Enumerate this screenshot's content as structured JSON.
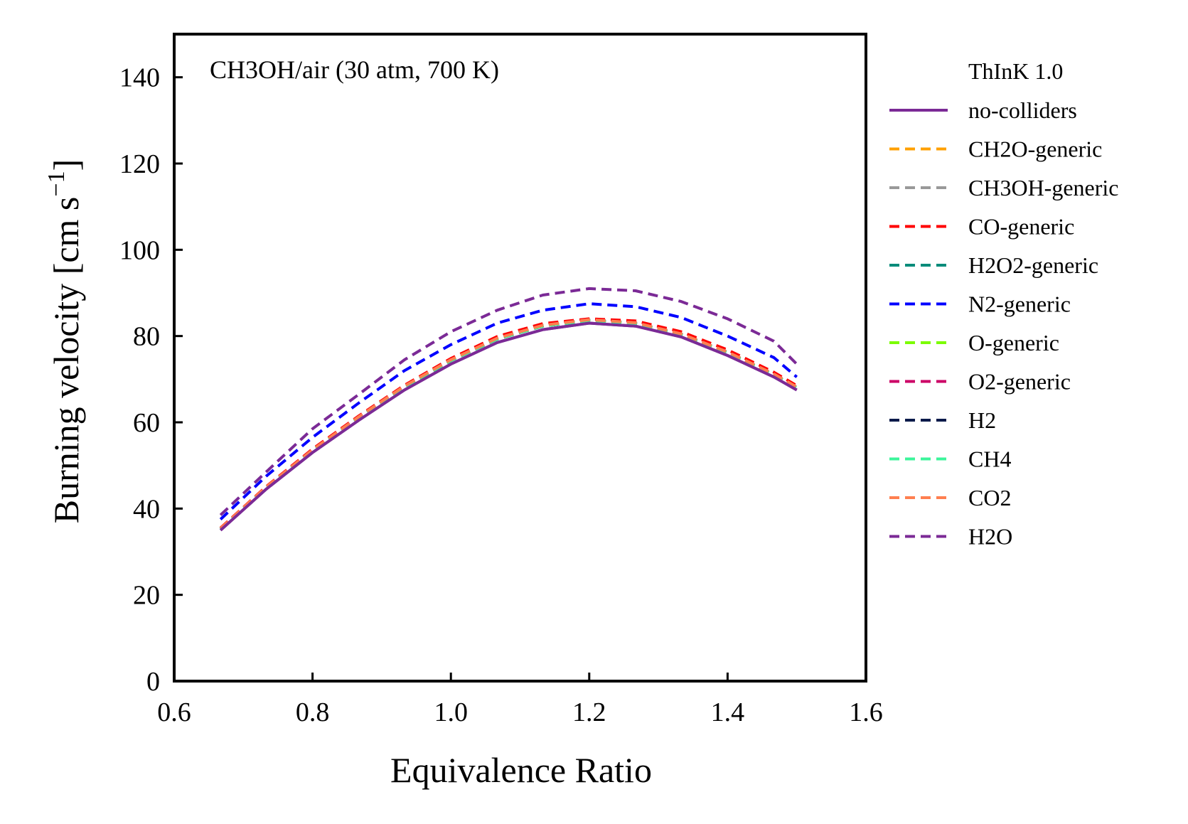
{
  "chart_data": {
    "type": "line",
    "annotation": "CH3OH/air (30 atm, 700 K)",
    "xlabel": "Equivalence Ratio",
    "ylabel_main": "Burning velocity [cm s",
    "ylabel_sup": "−1",
    "ylabel_close": "]",
    "xlim": [
      0.6,
      1.6
    ],
    "ylim": [
      0,
      150
    ],
    "xticks": [
      "0.6",
      "0.8",
      "1.0",
      "1.2",
      "1.4",
      "1.6"
    ],
    "yticks": [
      "0",
      "20",
      "40",
      "60",
      "80",
      "100",
      "120",
      "140"
    ],
    "legend_title": "ThInK 1.0",
    "legend_position": "outside-right",
    "x": [
      0.667,
      0.733,
      0.8,
      0.867,
      0.933,
      1.0,
      1.067,
      1.133,
      1.2,
      1.267,
      1.333,
      1.4,
      1.467,
      1.5
    ],
    "series": [
      {
        "name": "no-colliders",
        "color": "#7b2a96",
        "dash": "solid",
        "values": [
          35.0,
          44.5,
          53.0,
          60.5,
          67.5,
          73.5,
          78.5,
          81.5,
          83.0,
          82.3,
          79.8,
          75.5,
          70.5,
          67.5
        ]
      },
      {
        "name": "CH2O-generic",
        "color": "#ffa000",
        "dash": "dashed",
        "values": [
          35.4,
          45.0,
          53.6,
          61.3,
          68.4,
          74.5,
          79.5,
          82.5,
          83.8,
          83.1,
          80.5,
          76.3,
          71.2,
          68.2
        ]
      },
      {
        "name": "CH3OH-generic",
        "color": "#999999",
        "dash": "dashed",
        "values": [
          35.4,
          45.0,
          53.6,
          61.3,
          68.4,
          74.5,
          79.5,
          82.5,
          83.8,
          83.1,
          80.5,
          76.3,
          71.2,
          68.2
        ]
      },
      {
        "name": "CO-generic",
        "color": "#ff0000",
        "dash": "dashed",
        "values": [
          35.5,
          45.1,
          53.8,
          61.5,
          68.6,
          74.8,
          79.9,
          82.9,
          84.0,
          83.5,
          81.0,
          76.8,
          71.6,
          68.5
        ]
      },
      {
        "name": "H2O2-generic",
        "color": "#008b7a",
        "dash": "dashed",
        "values": [
          35.3,
          44.9,
          53.5,
          61.2,
          68.2,
          74.3,
          79.3,
          82.3,
          83.6,
          82.9,
          80.3,
          76.1,
          71.0,
          68.0
        ]
      },
      {
        "name": "N2-generic",
        "color": "#0000ff",
        "dash": "dashed",
        "values": [
          37.5,
          47.5,
          56.5,
          64.5,
          72.0,
          78.0,
          83.0,
          86.0,
          87.5,
          86.8,
          84.3,
          80.0,
          75.0,
          70.5
        ]
      },
      {
        "name": "O-generic",
        "color": "#7cfc00",
        "dash": "dashed",
        "values": [
          35.3,
          44.9,
          53.5,
          61.2,
          68.2,
          74.3,
          79.3,
          82.3,
          83.6,
          82.9,
          80.3,
          76.1,
          71.0,
          68.0
        ]
      },
      {
        "name": "O2-generic",
        "color": "#cc0066",
        "dash": "dashed",
        "values": [
          35.4,
          45.0,
          53.6,
          61.3,
          68.4,
          74.5,
          79.5,
          82.5,
          83.8,
          83.1,
          80.5,
          76.3,
          71.2,
          68.2
        ]
      },
      {
        "name": "H2",
        "color": "#0a1a4a",
        "dash": "dashed",
        "values": [
          35.3,
          44.9,
          53.5,
          61.2,
          68.2,
          74.3,
          79.3,
          82.3,
          83.6,
          82.9,
          80.3,
          76.1,
          71.0,
          68.0
        ]
      },
      {
        "name": "CH4",
        "color": "#3cf59b",
        "dash": "dashed",
        "values": [
          35.3,
          44.9,
          53.5,
          61.2,
          68.2,
          74.3,
          79.3,
          82.3,
          83.6,
          82.9,
          80.3,
          76.1,
          71.0,
          68.0
        ]
      },
      {
        "name": "CO2",
        "color": "#ff7f50",
        "dash": "dashed",
        "values": [
          35.4,
          45.0,
          53.6,
          61.3,
          68.4,
          74.5,
          79.5,
          82.5,
          83.8,
          83.1,
          80.5,
          76.3,
          71.2,
          68.2
        ]
      },
      {
        "name": "H2O",
        "color": "#7b2a96",
        "dash": "dashed",
        "values": [
          38.5,
          48.5,
          58.5,
          66.5,
          74.5,
          81.0,
          86.0,
          89.5,
          91.0,
          90.5,
          88.0,
          84.0,
          78.8,
          73.5
        ]
      }
    ]
  }
}
